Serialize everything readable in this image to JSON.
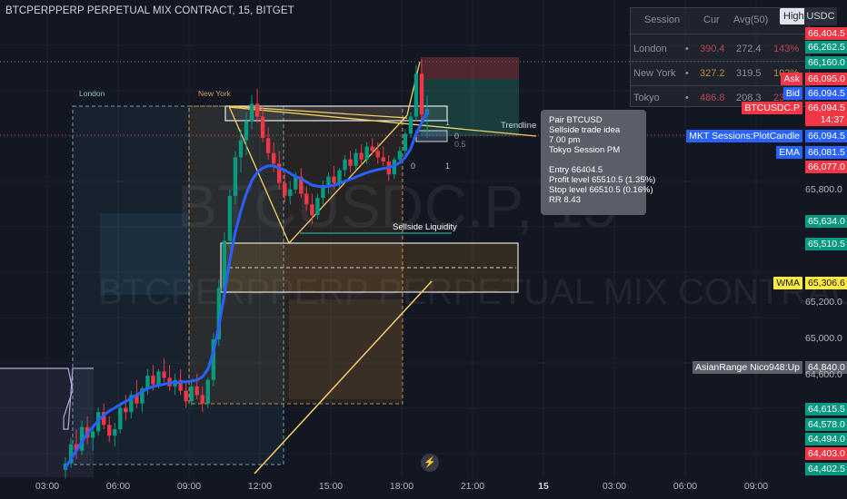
{
  "header": {
    "title": "BTCPERPPERP PERPETUAL MIX CONTRACT, 15, BITGET"
  },
  "watermark": {
    "symbol": "BTCUSDC.P, 15",
    "description": "BTCPERPPERP PERPETUAL MIX CONTRACT"
  },
  "session_table": {
    "headers": [
      "Session",
      "Cur",
      "Avg(50)",
      "%"
    ],
    "rows": [
      {
        "session": "London",
        "dot": "•",
        "cur": "390.4",
        "avg": "272.4",
        "pct": "143%"
      },
      {
        "session": "New York",
        "dot": "•",
        "cur": "327.2",
        "avg": "319.5",
        "pct": "102%"
      },
      {
        "session": "Tokyo",
        "dot": "•",
        "cur": "486.8",
        "avg": "208.3",
        "pct": "234%"
      }
    ]
  },
  "toolbar": {
    "high_button": "High",
    "currency_button": "USDC"
  },
  "sessions": {
    "london": "London",
    "new_york": "New York"
  },
  "annotations": {
    "trendline": "Trendline",
    "liquidity": "Sellside Liquidity"
  },
  "fib_labels": {
    "zero_a": "0",
    "half": "0.5",
    "one_a": "1",
    "zero_b": "0",
    "one_b": "1"
  },
  "info_box": {
    "pair": "Pair BTCUSD",
    "idea": "Sellside trade idea",
    "time": "7.00 pm",
    "session": "Tokyo Session PM",
    "entry": "Entry 66404.5",
    "profit": "Profit level 65510.5 (1.35%)",
    "stop": "Stop level 66510.5 (0.16%)",
    "rr": "RR 8.43"
  },
  "price_axis": {
    "ticks": [
      "65,800.0",
      "65,200.0",
      "65,000.0",
      "64,600.0"
    ],
    "tags": [
      {
        "value": "66,404.5",
        "color": "#f23645"
      },
      {
        "value": "66,262.5",
        "color": "#089981"
      },
      {
        "value": "66,160.0",
        "color": "#089981"
      },
      {
        "value": "66,095.0",
        "color": "#f23645"
      },
      {
        "value": "66,094.5",
        "color": "#2962ff"
      },
      {
        "value": "66,094.5",
        "color": "#f23645"
      },
      {
        "value": "14:37",
        "color": "#f23645"
      },
      {
        "value": "66,094.5",
        "color": "#2962ff"
      },
      {
        "value": "66,081.5",
        "color": "#2962ff"
      },
      {
        "value": "66,077.0",
        "color": "#f23645"
      },
      {
        "value": "65,634.0",
        "color": "#089981"
      },
      {
        "value": "65,510.5",
        "color": "#089981"
      },
      {
        "value": "65,306.6",
        "color": "#ffeb3b"
      },
      {
        "value": "64,840.0",
        "color": "#5d606b"
      },
      {
        "value": "64,615.5",
        "color": "#089981"
      },
      {
        "value": "64,578.0",
        "color": "#089981"
      },
      {
        "value": "64,494.0",
        "color": "#089981"
      },
      {
        "value": "64,403.0",
        "color": "#f23645"
      },
      {
        "value": "64,402.5",
        "color": "#089981"
      }
    ],
    "side_tags": {
      "ask": "Ask",
      "bid": "Bid",
      "symbol": "BTCUSDC.P",
      "mkt": "MKT Sessions:PlotCandle",
      "ema": "EMA",
      "wma": "WMA",
      "asian": "AsianRange Nico948:Up"
    }
  },
  "time_axis": {
    "labels": [
      "03:00",
      "06:00",
      "09:00",
      "12:00",
      "15:00",
      "18:00",
      "21:00",
      "15",
      "03:00",
      "06:00",
      "09:00"
    ]
  },
  "chart_data": {
    "type": "candlestick",
    "title": "BTCPERPPERP PERPETUAL MIX CONTRACT, 15, BITGET",
    "ylim": [
      64380,
      66520
    ],
    "x_range": [
      "02:00",
      "10:30 (next day)"
    ],
    "grid": true,
    "candles_ohlc": [
      [
        64410,
        64470,
        64370,
        64440
      ],
      [
        64440,
        64560,
        64420,
        64530
      ],
      [
        64530,
        64600,
        64460,
        64500
      ],
      [
        64500,
        64640,
        64480,
        64610
      ],
      [
        64610,
        64660,
        64530,
        64560
      ],
      [
        64560,
        64620,
        64500,
        64590
      ],
      [
        64590,
        64700,
        64570,
        64680
      ],
      [
        64680,
        64720,
        64600,
        64620
      ],
      [
        64620,
        64660,
        64540,
        64570
      ],
      [
        64570,
        64630,
        64520,
        64600
      ],
      [
        64600,
        64720,
        64580,
        64700
      ],
      [
        64700,
        64760,
        64640,
        64680
      ],
      [
        64680,
        64780,
        64650,
        64760
      ],
      [
        64760,
        64830,
        64700,
        64720
      ],
      [
        64720,
        64800,
        64680,
        64790
      ],
      [
        64790,
        64880,
        64760,
        64850
      ],
      [
        64850,
        64900,
        64780,
        64810
      ],
      [
        64810,
        64880,
        64790,
        64870
      ],
      [
        64870,
        64930,
        64820,
        64840
      ],
      [
        64840,
        64900,
        64780,
        64800
      ],
      [
        64800,
        64860,
        64760,
        64830
      ],
      [
        64830,
        64880,
        64760,
        64780
      ],
      [
        64780,
        64820,
        64700,
        64730
      ],
      [
        64730,
        64820,
        64710,
        64800
      ],
      [
        64800,
        64860,
        64740,
        64760
      ],
      [
        64760,
        64800,
        64680,
        64720
      ],
      [
        64720,
        64840,
        64700,
        64830
      ],
      [
        64830,
        65050,
        64800,
        65020
      ],
      [
        65020,
        65300,
        64990,
        65260
      ],
      [
        65260,
        65520,
        65220,
        65480
      ],
      [
        65480,
        65720,
        65440,
        65690
      ],
      [
        65690,
        65900,
        65650,
        65870
      ],
      [
        65870,
        66000,
        65800,
        65950
      ],
      [
        65950,
        66080,
        65880,
        66040
      ],
      [
        66040,
        66160,
        66000,
        66120
      ],
      [
        66120,
        66190,
        66030,
        66060
      ],
      [
        66060,
        66110,
        65940,
        65960
      ],
      [
        65960,
        66010,
        65860,
        65890
      ],
      [
        65890,
        65940,
        65800,
        65840
      ],
      [
        65840,
        65900,
        65720,
        65750
      ],
      [
        65750,
        65800,
        65660,
        65690
      ],
      [
        65690,
        65760,
        65650,
        65720
      ],
      [
        65720,
        65800,
        65700,
        65780
      ],
      [
        65780,
        65820,
        65680,
        65700
      ],
      [
        65700,
        65730,
        65620,
        65650
      ],
      [
        65650,
        65700,
        65560,
        65600
      ],
      [
        65600,
        65700,
        65580,
        65680
      ],
      [
        65680,
        65760,
        65650,
        65740
      ],
      [
        65740,
        65800,
        65700,
        65780
      ],
      [
        65780,
        65830,
        65720,
        65750
      ],
      [
        65750,
        65820,
        65730,
        65810
      ],
      [
        65810,
        65880,
        65780,
        65860
      ],
      [
        65860,
        65900,
        65800,
        65830
      ],
      [
        65830,
        65910,
        65810,
        65890
      ],
      [
        65890,
        65930,
        65830,
        65860
      ],
      [
        65860,
        65940,
        65840,
        65920
      ],
      [
        65920,
        65960,
        65880,
        65900
      ],
      [
        65900,
        65940,
        65840,
        65870
      ],
      [
        65870,
        65920,
        65830,
        65850
      ],
      [
        65850,
        65880,
        65760,
        65790
      ],
      [
        65790,
        65870,
        65770,
        65860
      ],
      [
        65860,
        65920,
        65840,
        65900
      ],
      [
        65900,
        66000,
        65880,
        65980
      ],
      [
        65980,
        66080,
        65960,
        66060
      ],
      [
        66060,
        66300,
        66040,
        66260
      ],
      [
        66260,
        66330,
        66020,
        66070
      ],
      [
        66070,
        66160,
        65960,
        66094.5
      ]
    ],
    "ema_values": [
      64420,
      64460,
      64500,
      64540,
      64580,
      64610,
      64640,
      64665,
      64685,
      64700,
      64715,
      64730,
      64745,
      64760,
      64775,
      64790,
      64800,
      64805,
      64810,
      64815,
      64818,
      64820,
      64822,
      64825,
      64830,
      64845,
      64880,
      64960,
      65080,
      65230,
      65390,
      65520,
      65620,
      65700,
      65760,
      65800,
      65820,
      65830,
      65830,
      65820,
      65810,
      65795,
      65780,
      65770,
      65755,
      65740,
      65735,
      65732,
      65735,
      65740,
      65748,
      65758,
      65768,
      65778,
      65788,
      65798,
      65806,
      65812,
      65818,
      65822,
      65832,
      65845,
      65870,
      65910,
      65980,
      66030,
      66081.5
    ],
    "asian_range": {
      "low": 64650,
      "high": 64840
    },
    "trade_idea": {
      "entry": 66404.5,
      "profit_level": 65510.5,
      "stop_level": 66510.5,
      "rr": 8.43
    },
    "sellside_liquidity_level": 65634,
    "fvg_zone": {
      "top": 65510.5,
      "bottom": 65306.6
    }
  }
}
